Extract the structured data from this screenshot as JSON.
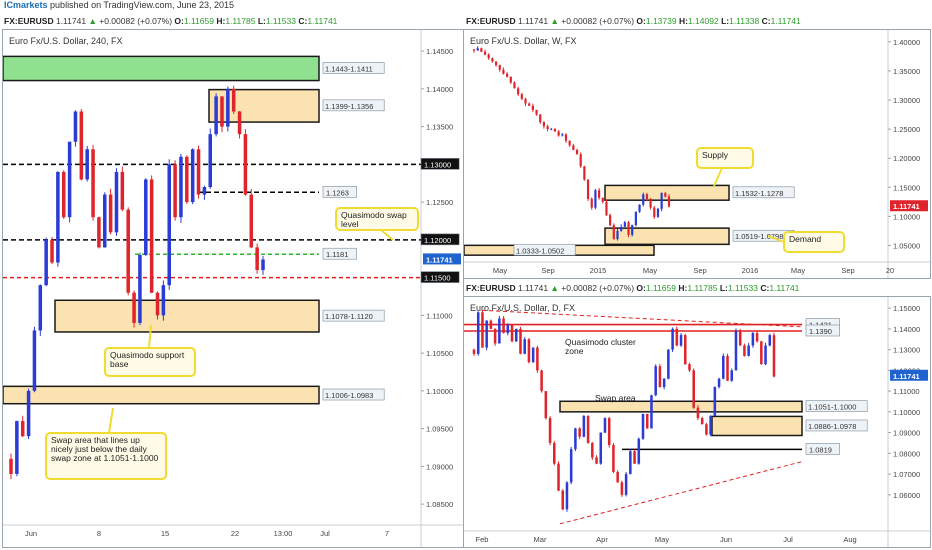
{
  "header": {
    "publisher": "ICmarkets",
    "published_text": "published on TradingView.com, June 23, 2015"
  },
  "panels": [
    {
      "symbol": "FX:EURUSD",
      "last": "1.11741",
      "change": "+0.00082 (+0.07%)",
      "open": "1.11659",
      "high": "1.11785",
      "low": "1.11533",
      "close": "1.11741"
    },
    {
      "symbol": "FX:EURUSD",
      "last": "1.11741",
      "change": "+0.00082 (+0.07%)",
      "open": "1.13739",
      "high": "1.14092",
      "low": "1.11338",
      "close": "1.11741"
    },
    {
      "symbol": "FX:EURUSD",
      "last": "1.11741",
      "change": "+0.00082 (+0.07%)",
      "open": "1.11659",
      "high": "1.11785",
      "low": "1.11533",
      "close": "1.11741"
    }
  ],
  "chart_data": [
    {
      "type": "candlestick",
      "title": "Euro Fx/U.S. Dollar, 240, FX",
      "ylim": [
        1.0825,
        1.147
      ],
      "yticks": [
        "1.14500",
        "1.14000",
        "1.13500",
        "1.12500",
        "1.12000",
        "1.11500",
        "1.11000",
        "1.10500",
        "1.10000",
        "1.09500",
        "1.09000",
        "1.08500"
      ],
      "xticks": [
        "Jun",
        "8",
        "15",
        "22",
        "13:00",
        "Jul",
        "7"
      ],
      "last_price": "1.11741",
      "close_path": [
        1.089,
        1.096,
        1.094,
        1.1,
        1.108,
        1.114,
        1.12,
        1.117,
        1.129,
        1.123,
        1.133,
        1.137,
        1.128,
        1.132,
        1.123,
        1.119,
        1.126,
        1.121,
        1.129,
        1.124,
        1.113,
        1.109,
        1.118,
        1.128,
        1.113,
        1.11,
        1.114,
        1.13,
        1.123,
        1.131,
        1.125,
        1.132,
        1.126,
        1.127,
        1.134,
        1.139,
        1.135,
        1.14,
        1.137,
        1.134,
        1.126,
        1.119,
        1.116,
        1.1174
      ],
      "zones": [
        {
          "label": "1.1443-1.1411",
          "top": 1.1443,
          "bottom": 1.1411,
          "color": "#8fe08f"
        },
        {
          "label": "1.1399-1.1356",
          "top": 1.1399,
          "bottom": 1.1356,
          "color": "#fae3b0"
        },
        {
          "label": "1.1078-1.1120",
          "top": 1.112,
          "bottom": 1.1078,
          "color": "#fae3b0"
        },
        {
          "label": "1.1006-1.0983",
          "top": 1.1006,
          "bottom": 1.0983,
          "color": "#fae3b0"
        }
      ],
      "levels": [
        {
          "label": "1.13000",
          "value": 1.13,
          "color": "#000000"
        },
        {
          "label": "1.1263",
          "value": 1.1263,
          "color": "#000000"
        },
        {
          "label": "1.12000",
          "value": 1.12,
          "color": "#000000"
        },
        {
          "label": "1.1181",
          "value": 1.1181,
          "color": "#2bb52b"
        },
        {
          "label": "1.11500",
          "value": 1.115,
          "color": "#e02020"
        }
      ],
      "annotations": [
        "Quasimodo swap level",
        "Quasimodo support base",
        "Swap area that lines up nicely just below the daily swap zone at 1.1051-1.1000"
      ]
    },
    {
      "type": "candlestick",
      "title": "Euro Fx/U.S. Dollar, W, FX",
      "ylim": [
        1.025,
        1.41
      ],
      "yticks": [
        "1.40000",
        "1.35000",
        "1.30000",
        "1.25000",
        "1.20000",
        "1.15000",
        "1.10000",
        "1.05000"
      ],
      "xticks": [
        "May",
        "Sep",
        "2015",
        "May",
        "Sep",
        "2016",
        "May",
        "Sep",
        "20"
      ],
      "last_price": "1.11741",
      "close_path": [
        1.385,
        1.389,
        1.383,
        1.378,
        1.372,
        1.366,
        1.36,
        1.352,
        1.345,
        1.34,
        1.33,
        1.32,
        1.31,
        1.302,
        1.294,
        1.29,
        1.283,
        1.275,
        1.262,
        1.255,
        1.25,
        1.25,
        1.246,
        1.239,
        1.241,
        1.23,
        1.222,
        1.214,
        1.207,
        1.186,
        1.163,
        1.13,
        1.115,
        1.145,
        1.132,
        1.125,
        1.102,
        1.085,
        1.061,
        1.075,
        1.082,
        1.09,
        1.068,
        1.085,
        1.108,
        1.12,
        1.138,
        1.13,
        1.115,
        1.099,
        1.113,
        1.14,
        1.134,
        1.117
      ],
      "zones": [
        {
          "label": "1.1532-1.1278",
          "top": 1.1532,
          "bottom": 1.1278,
          "color": "#fae3b0"
        },
        {
          "label": "1.0519-1.0798",
          "top": 1.0798,
          "bottom": 1.0519,
          "color": "#fae3b0"
        },
        {
          "label": "1.0333-1.0502",
          "top": 1.0502,
          "bottom": 1.0333,
          "color": "#fae3b0"
        }
      ],
      "annotations": [
        "Supply",
        "Demand"
      ]
    },
    {
      "type": "candlestick",
      "title": "Euro Fx/U.S. Dollar, D, FX",
      "ylim": [
        1.0435,
        1.1525
      ],
      "yticks": [
        "1.15000",
        "1.14000",
        "1.13000",
        "1.12000",
        "1.11000",
        "1.10000",
        "1.09000",
        "1.08000",
        "1.07000",
        "1.06000"
      ],
      "xticks": [
        "Feb",
        "Mar",
        "Apr",
        "May",
        "Jun",
        "Jul",
        "Aug"
      ],
      "last_price": "1.11741",
      "close_path": [
        1.128,
        1.148,
        1.131,
        1.144,
        1.14,
        1.133,
        1.145,
        1.138,
        1.142,
        1.134,
        1.14,
        1.128,
        1.135,
        1.124,
        1.131,
        1.12,
        1.11,
        1.097,
        1.085,
        1.075,
        1.062,
        1.053,
        1.066,
        1.082,
        1.092,
        1.088,
        1.098,
        1.085,
        1.078,
        1.075,
        1.09,
        1.097,
        1.084,
        1.071,
        1.066,
        1.06,
        1.07,
        1.081,
        1.075,
        1.087,
        1.099,
        1.092,
        1.108,
        1.122,
        1.112,
        1.116,
        1.13,
        1.14,
        1.132,
        1.137,
        1.123,
        1.12,
        1.102,
        1.097,
        1.094,
        1.089,
        1.098,
        1.112,
        1.116,
        1.127,
        1.115,
        1.12,
        1.139,
        1.132,
        1.127,
        1.132,
        1.138,
        1.134,
        1.123,
        1.132,
        1.137,
        1.117
      ],
      "zones": [
        {
          "label": "1.1051-1.1000",
          "top": 1.1051,
          "bottom": 1.1,
          "color": "#fae3b0"
        },
        {
          "label": "1.0886-1.0978",
          "top": 1.0978,
          "bottom": 1.0886,
          "color": "#fae3b0"
        }
      ],
      "levels": [
        {
          "label": "1.1421",
          "value": 1.1421,
          "color": "#e02020"
        },
        {
          "label": "1.1390",
          "value": 1.139,
          "color": "#e02020"
        },
        {
          "label": "1.0819",
          "value": 1.0819,
          "color": "#000000"
        }
      ],
      "annotations": [
        "Quasimodo cluster zone",
        "Swap area"
      ]
    }
  ],
  "colors": {
    "bull": "#2b3bd6",
    "bear": "#e0242b",
    "price_tag": "#1e63d0",
    "callout_border": "#f0dc30"
  }
}
